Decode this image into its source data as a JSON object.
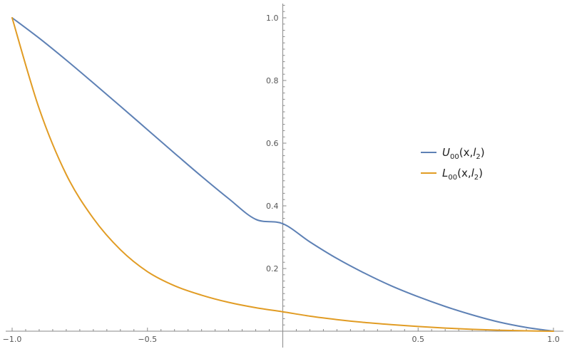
{
  "chart_data": {
    "type": "line",
    "xlim": [
      -1.0,
      1.0
    ],
    "ylim": [
      0,
      1.05
    ],
    "grid": false,
    "legend_position": "right",
    "x_ticks": [
      {
        "value": -1.0,
        "label": "−1.0"
      },
      {
        "value": -0.5,
        "label": "−0.5"
      },
      {
        "value": 0.5,
        "label": "0.5"
      },
      {
        "value": 1.0,
        "label": "1.0"
      }
    ],
    "y_ticks": [
      {
        "value": 0.2,
        "label": "0.2"
      },
      {
        "value": 0.4,
        "label": "0.4"
      },
      {
        "value": 0.6,
        "label": "0.6"
      },
      {
        "value": 0.8,
        "label": "0.8"
      },
      {
        "value": 1.0,
        "label": "1.0"
      }
    ],
    "x": [
      -1.0,
      -0.9,
      -0.8,
      -0.7,
      -0.6,
      -0.5,
      -0.4,
      -0.3,
      -0.2,
      -0.1,
      0.0,
      0.1,
      0.2,
      0.3,
      0.4,
      0.5,
      0.6,
      0.7,
      0.8,
      0.9,
      1.0
    ],
    "series": [
      {
        "name_main": "U",
        "name_sub": "00",
        "name_args_pre": "(x,",
        "name_var": "l",
        "name_var_sub": "2",
        "name_args_post": ")",
        "color": "#5e81b5",
        "values": [
          1.0,
          0.935,
          0.865,
          0.792,
          0.718,
          0.643,
          0.568,
          0.494,
          0.423,
          0.357,
          0.343,
          0.285,
          0.232,
          0.186,
          0.145,
          0.11,
          0.079,
          0.052,
          0.029,
          0.012,
          0.0
        ]
      },
      {
        "name_main": "L",
        "name_sub": "00",
        "name_args_pre": "(x,",
        "name_var": "l",
        "name_var_sub": "2",
        "name_args_post": ")",
        "color": "#e19c24",
        "values": [
          1.0,
          0.71,
          0.5,
          0.36,
          0.26,
          0.19,
          0.145,
          0.115,
          0.092,
          0.075,
          0.062,
          0.048,
          0.037,
          0.028,
          0.021,
          0.015,
          0.01,
          0.006,
          0.003,
          0.001,
          0.0
        ]
      }
    ]
  }
}
